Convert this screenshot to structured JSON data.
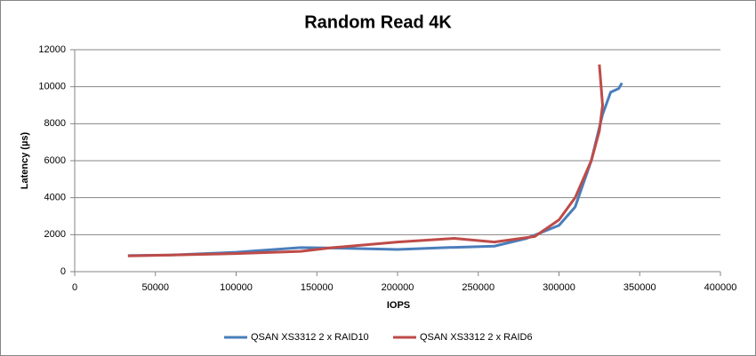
{
  "chart_data": {
    "type": "line",
    "title": "Random Read 4K",
    "x_label": "IOPS",
    "y_label": "Latency (µs)",
    "xlim": [
      0,
      400000
    ],
    "xticks": [
      0,
      50000,
      100000,
      150000,
      200000,
      250000,
      300000,
      350000,
      400000
    ],
    "ylim": [
      0,
      12000
    ],
    "yticks": [
      0,
      2000,
      4000,
      6000,
      8000,
      10000,
      12000
    ],
    "grid": true,
    "legend": "bottom",
    "series": [
      {
        "name": "QSAN XS3312 2 x RAID10",
        "color": "#4a7ebb",
        "x": [
          33000,
          60000,
          100000,
          140000,
          160000,
          200000,
          230000,
          260000,
          280000,
          300000,
          310000,
          320000,
          327000,
          332000,
          337000,
          339000
        ],
        "values": [
          870,
          900,
          1050,
          1300,
          1280,
          1200,
          1300,
          1380,
          1800,
          2500,
          3500,
          6000,
          8500,
          9700,
          9900,
          10200
        ]
      },
      {
        "name": "QSAN XS3312 2 x RAID6",
        "color": "#be4b48",
        "x": [
          33000,
          60000,
          100000,
          140000,
          160000,
          200000,
          235000,
          260000,
          285000,
          300000,
          310000,
          320000,
          325000,
          327000,
          325000
        ],
        "values": [
          850,
          900,
          980,
          1100,
          1300,
          1600,
          1800,
          1600,
          1900,
          2800,
          4000,
          6000,
          7600,
          9000,
          11200
        ]
      }
    ]
  }
}
